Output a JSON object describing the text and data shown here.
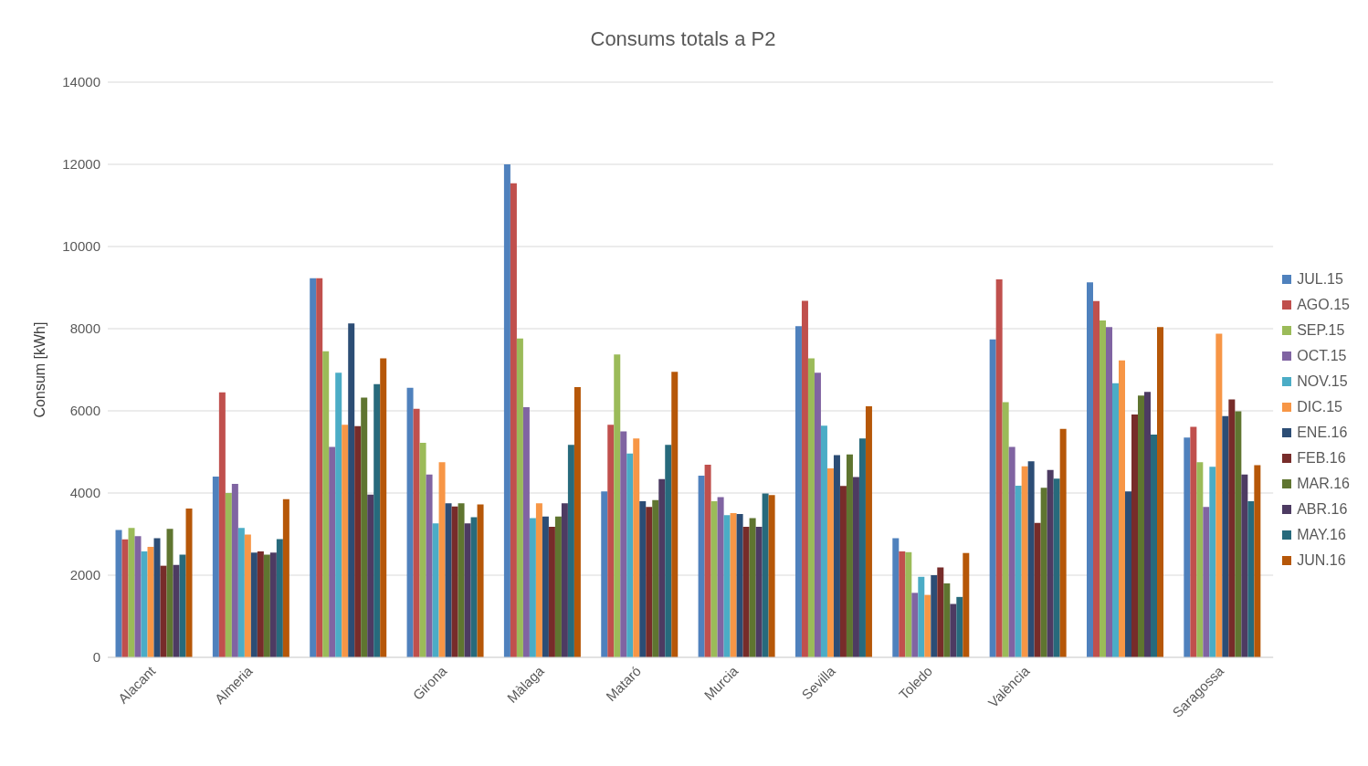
{
  "chart_data": {
    "type": "bar",
    "title": "Consums totals a P2",
    "ylabel": "Consum [kWh]",
    "categories": [
      "Alacant",
      "Almeria",
      null,
      "Girona",
      "Màlaga",
      "Mataró",
      "Murcia",
      "Sevilla",
      "Toledo",
      "València",
      null,
      "Saragossa"
    ],
    "series": [
      {
        "name": "JUL.15",
        "color": "#4f81bd",
        "values": [
          3100,
          4400,
          9230,
          6560,
          12000,
          4040,
          4420,
          8060,
          2900,
          7740,
          9130,
          5350
        ]
      },
      {
        "name": "AGO.15",
        "color": "#c0504d",
        "values": [
          2870,
          6450,
          9230,
          6050,
          11540,
          5660,
          4690,
          8680,
          2580,
          9200,
          8670,
          5610
        ]
      },
      {
        "name": "SEP.15",
        "color": "#9bbb59",
        "values": [
          3150,
          4000,
          7450,
          5220,
          7760,
          7370,
          3800,
          7280,
          2560,
          6210,
          8200,
          4750
        ]
      },
      {
        "name": "OCT.15",
        "color": "#8064a2",
        "values": [
          2950,
          4220,
          5120,
          4450,
          6090,
          5500,
          3900,
          6930,
          1570,
          5120,
          8040,
          3660
        ]
      },
      {
        "name": "NOV.15",
        "color": "#4bacc6",
        "values": [
          2580,
          3150,
          6930,
          3260,
          3390,
          4960,
          3460,
          5640,
          1960,
          4180,
          6670,
          4640
        ]
      },
      {
        "name": "DIC.15",
        "color": "#f79646",
        "values": [
          2690,
          2990,
          5660,
          4750,
          3750,
          5330,
          3510,
          4600,
          1520,
          4650,
          7230,
          7880
        ]
      },
      {
        "name": "ENE.16",
        "color": "#2c4d75",
        "values": [
          2900,
          2550,
          8130,
          3750,
          3430,
          3800,
          3490,
          4920,
          2000,
          4770,
          4040,
          5870
        ]
      },
      {
        "name": "FEB.16",
        "color": "#772c2a",
        "values": [
          2230,
          2580,
          5630,
          3670,
          3180,
          3660,
          3180,
          4170,
          2190,
          3270,
          5910,
          6280
        ]
      },
      {
        "name": "MAR.16",
        "color": "#5f7530",
        "values": [
          3130,
          2500,
          6320,
          3750,
          3430,
          3830,
          3390,
          4940,
          1800,
          4130,
          6370,
          5990
        ]
      },
      {
        "name": "ABR.16",
        "color": "#4d3b62",
        "values": [
          2250,
          2550,
          3960,
          3260,
          3750,
          4340,
          3180,
          4390,
          1300,
          4560,
          6460,
          4450
        ]
      },
      {
        "name": "MAY.16",
        "color": "#276a7c",
        "values": [
          2500,
          2880,
          6650,
          3410,
          5170,
          5170,
          3990,
          5330,
          1470,
          4350,
          5420,
          3800
        ]
      },
      {
        "name": "JUN.16",
        "color": "#b65708",
        "values": [
          3620,
          3850,
          7280,
          3720,
          6580,
          6950,
          3950,
          6110,
          2540,
          5560,
          8040,
          4680
        ]
      }
    ],
    "ylim": [
      0,
      14000
    ],
    "yticks": [
      0,
      2000,
      4000,
      6000,
      8000,
      10000,
      12000,
      14000
    ],
    "grid": "y",
    "legend": "right"
  }
}
